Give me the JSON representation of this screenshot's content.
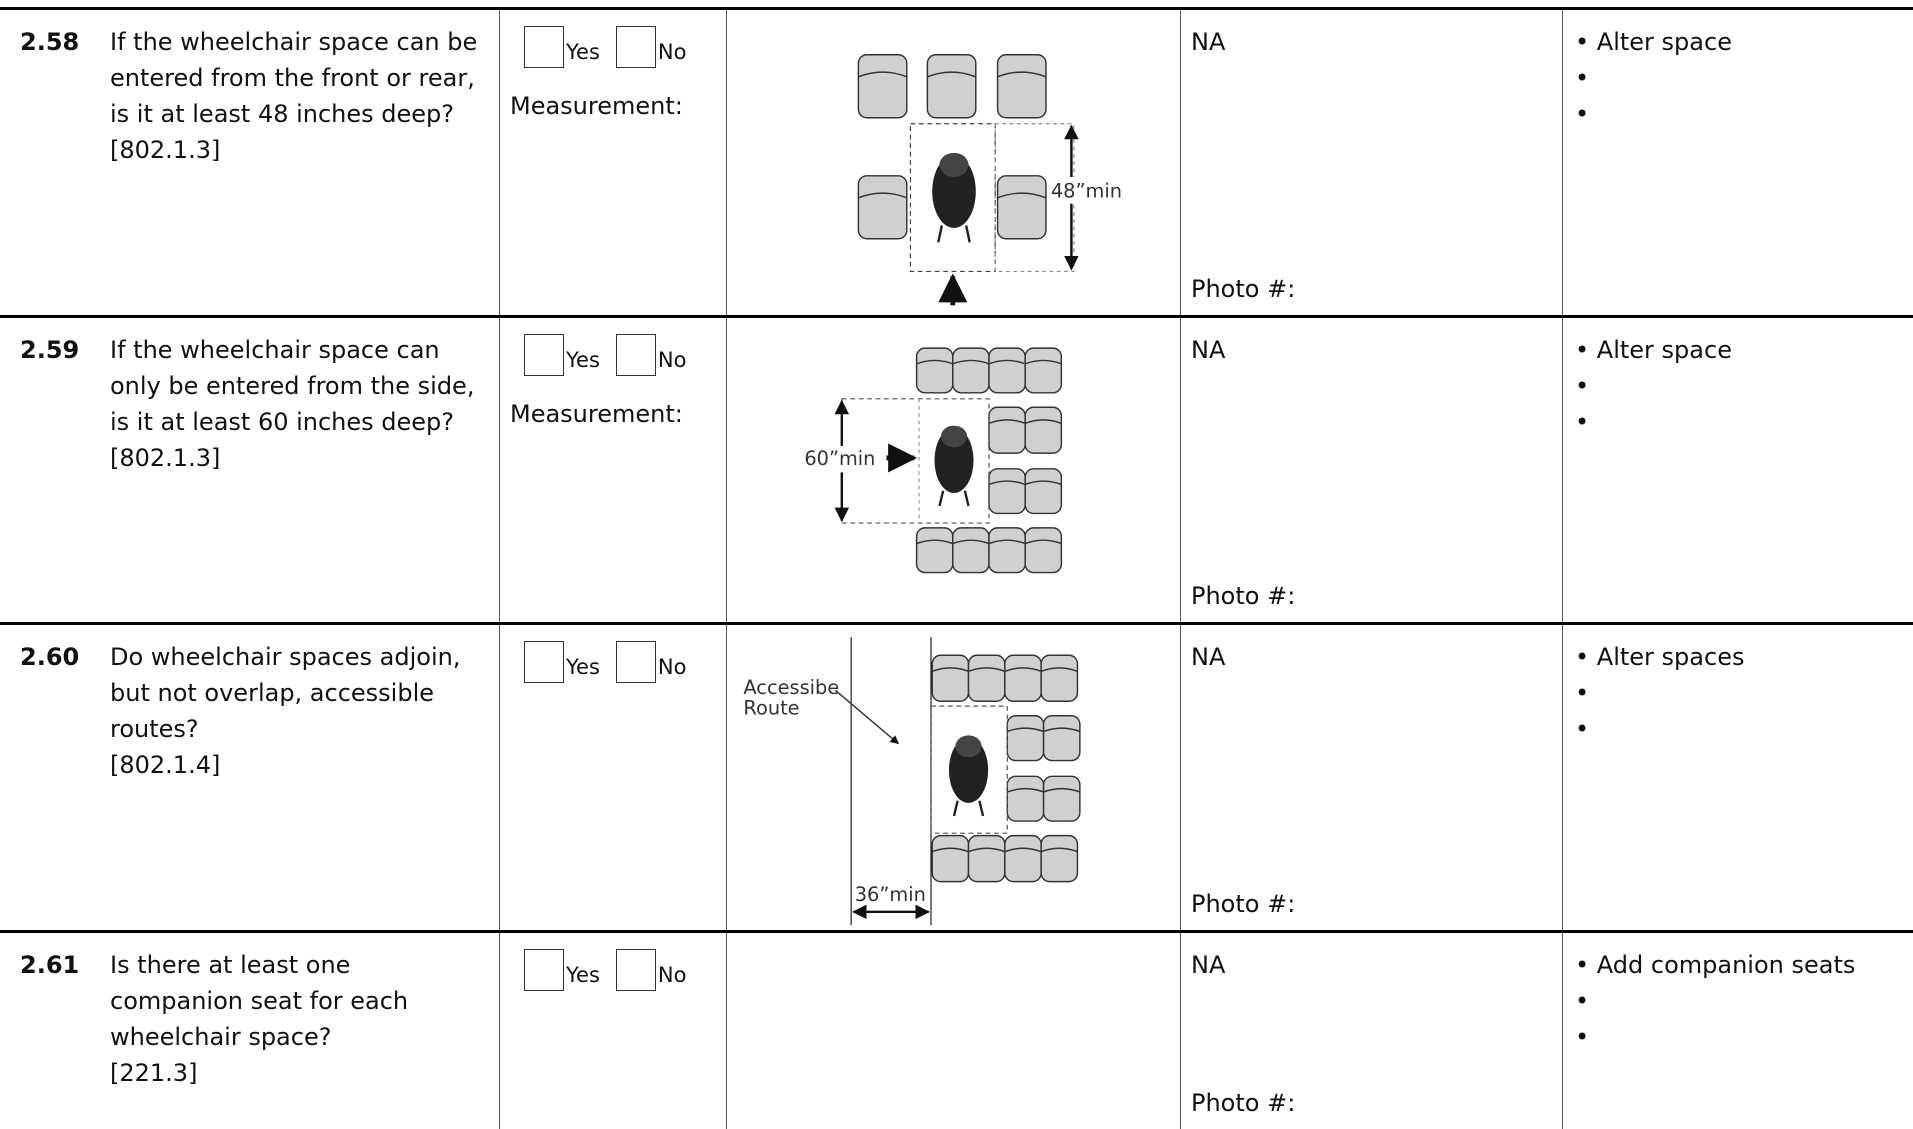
{
  "rows": [
    {
      "number": "2.58",
      "question": "If the wheelchair space can be entered from the front or rear, is it at least 48 inches deep?",
      "citation": "[802.1.3]",
      "yes": "Yes",
      "no": "No",
      "measurement": "Measurement:",
      "figure_labels": [
        "48”min"
      ],
      "na": "NA",
      "photo": "Photo #:",
      "actions": [
        "Alter space"
      ]
    },
    {
      "number": "2.59",
      "question": "If the wheelchair space can only be entered from the side, is it at least 60 inches deep?",
      "citation": "[802.1.3]",
      "yes": "Yes",
      "no": "No",
      "measurement": "Measurement:",
      "figure_labels": [
        "60”min"
      ],
      "na": "NA",
      "photo": "Photo #:",
      "actions": [
        "Alter space"
      ]
    },
    {
      "number": "2.60",
      "question": "Do wheelchair spaces adjoin, but not overlap, accessible routes?",
      "citation": "[802.1.4]",
      "yes": "Yes",
      "no": "No",
      "figure_labels": [
        "Accessibe",
        "Route",
        "36”min"
      ],
      "na": "NA",
      "photo": "Photo #:",
      "actions": [
        "Alter spaces"
      ]
    },
    {
      "number": "2.61",
      "question": "Is there at least one companion seat for each wheelchair space?",
      "citation": "[221.3]",
      "yes": "Yes",
      "no": "No",
      "na": "NA",
      "photo": "Photo #:",
      "actions": [
        "Add companion seats"
      ]
    }
  ]
}
